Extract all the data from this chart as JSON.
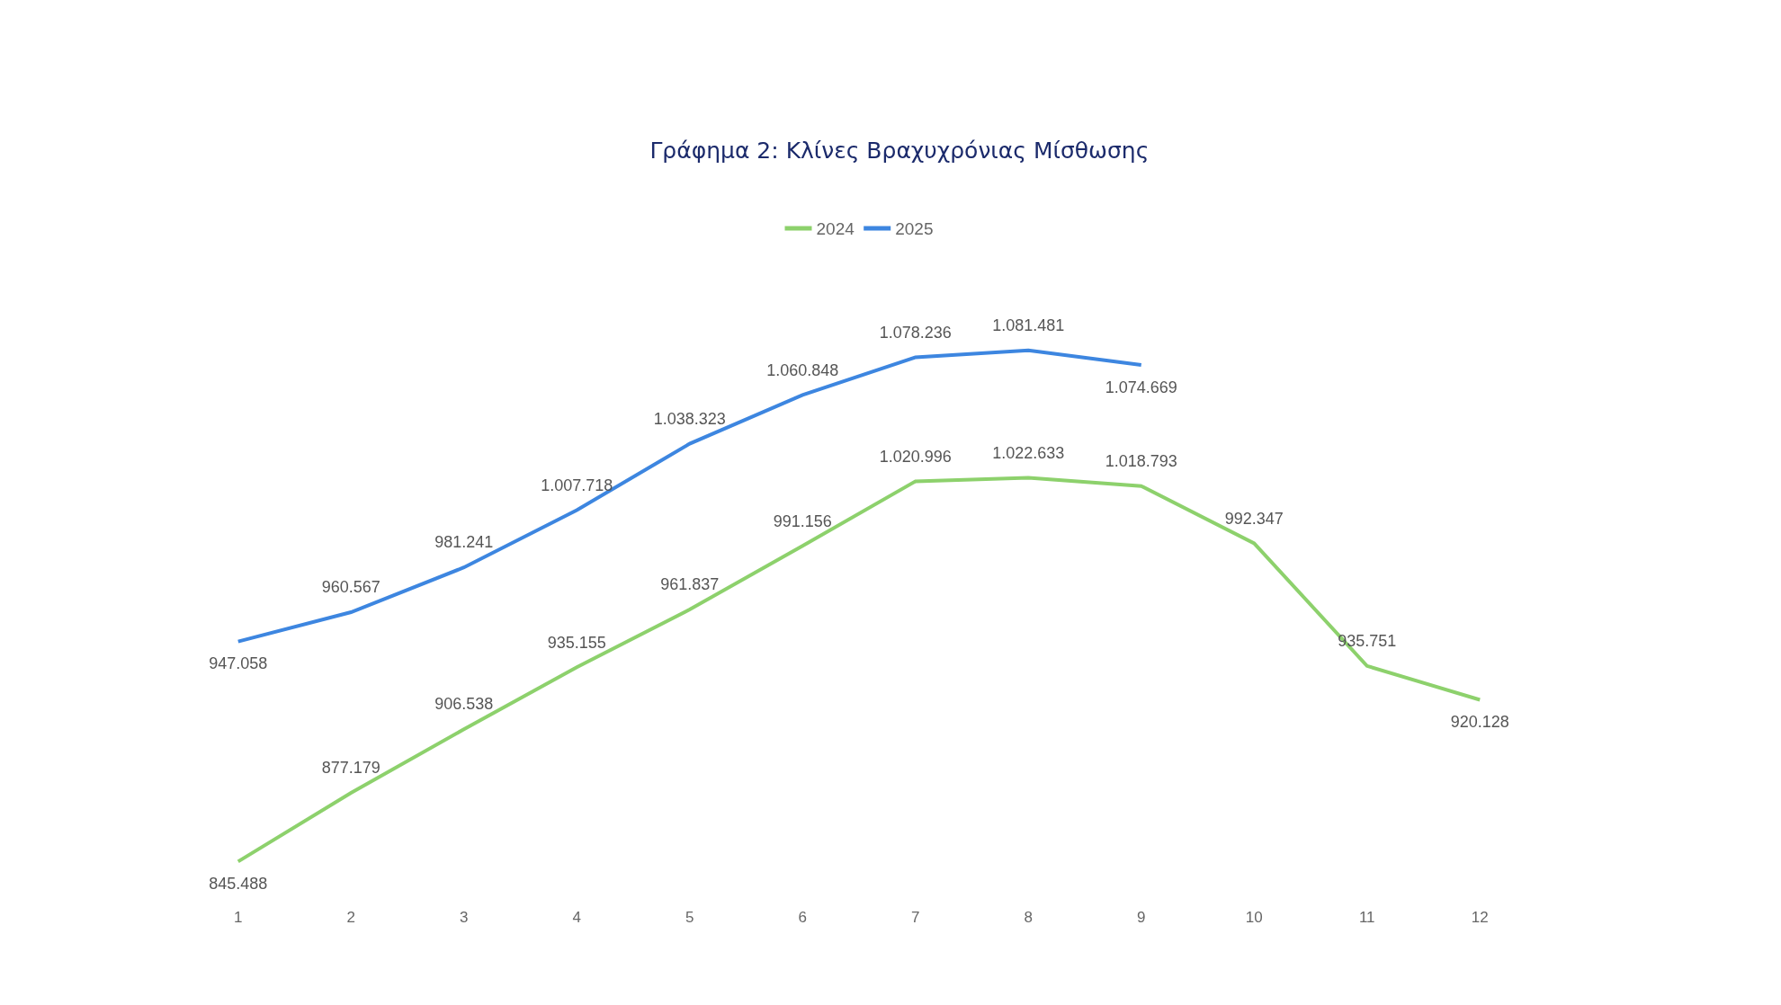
{
  "chart_data": {
    "type": "line",
    "title": "Γράφημα 2: Κλίνες Βραχυχρόνιας Μίσθωσης",
    "categories": [
      "1",
      "2",
      "3",
      "4",
      "5",
      "6",
      "7",
      "8",
      "9",
      "10",
      "11",
      "12"
    ],
    "series": [
      {
        "name": "2024",
        "color": "#8dd16c",
        "values": [
          845488,
          877179,
          906538,
          935155,
          961837,
          991156,
          1020996,
          1022633,
          1018793,
          992347,
          935751,
          920128
        ],
        "value_labels": [
          "845.488",
          "877.179",
          "906.538",
          "935.155",
          "961.837",
          "991.156",
          "1.020.996",
          "1.022.633",
          "1.018.793",
          "992.347",
          "935.751",
          "920.128"
        ]
      },
      {
        "name": "2025",
        "color": "#3d86e0",
        "values": [
          947058,
          960567,
          981241,
          1007718,
          1038323,
          1060848,
          1078236,
          1081481,
          1074669,
          null,
          null,
          null
        ],
        "value_labels": [
          "947.058",
          "960.567",
          "981.241",
          "1.007.718",
          "1.038.323",
          "1.060.848",
          "1.078.236",
          "1.081.481",
          "1.074.669",
          null,
          null,
          null
        ]
      }
    ],
    "legend": "top",
    "grid": false,
    "marker": "none",
    "line_style": "solid"
  }
}
